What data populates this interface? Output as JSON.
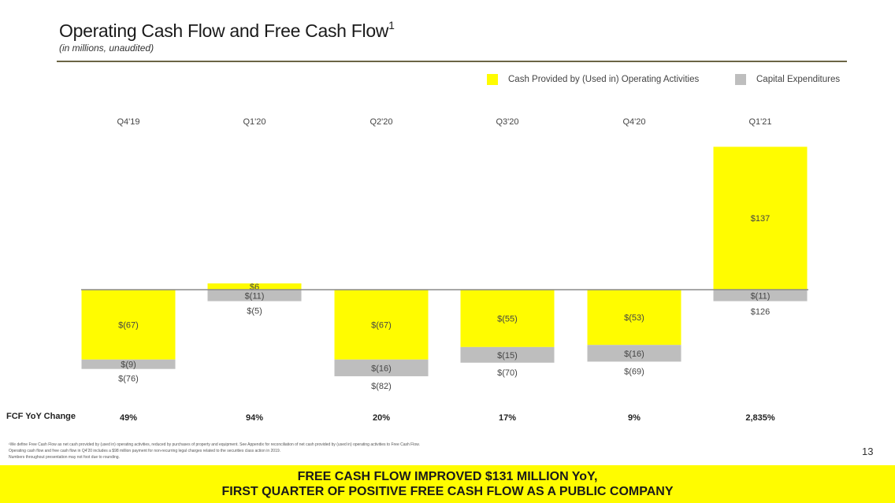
{
  "title": "Operating Cash Flow and Free Cash Flow",
  "title_superscript": "1",
  "subtitle": "(in millions, unaudited)",
  "colors": {
    "operating": "#fffc00",
    "capex": "#bebebe",
    "accent_rule": "#6b6545"
  },
  "legend": [
    {
      "label": "Cash Provided by (Used in) Operating Activities",
      "color": "#fffc00"
    },
    {
      "label": "Capital Expenditures",
      "color": "#bebebe"
    }
  ],
  "chart_data": {
    "type": "bar",
    "stacked": true,
    "categories": [
      "Q4'19",
      "Q1'20",
      "Q2'20",
      "Q3'20",
      "Q4'20",
      "Q1'21"
    ],
    "series": [
      {
        "name": "Cash Provided by (Used in) Operating Activities",
        "values": [
          -67,
          6,
          -67,
          -55,
          -53,
          137
        ],
        "labels": [
          "$(67)",
          "$6",
          "$(67)",
          "$(55)",
          "$(53)",
          "$137"
        ]
      },
      {
        "name": "Capital Expenditures",
        "values": [
          -9,
          -11,
          -16,
          -15,
          -16,
          -11
        ],
        "labels": [
          "$(9)",
          "$(11)",
          "$(16)",
          "$(15)",
          "$(16)",
          "$(11)"
        ]
      }
    ],
    "free_cash_flow": {
      "values": [
        -76,
        -5,
        -82,
        -70,
        -69,
        126
      ],
      "labels": [
        "$(76)",
        "$(5)",
        "$(82)",
        "$(70)",
        "$(69)",
        "$126"
      ]
    },
    "fcf_yoy_change": [
      "49%",
      "94%",
      "20%",
      "17%",
      "9%",
      "2,835%"
    ]
  },
  "fcf_row_label": "FCF YoY Change",
  "footnotes": [
    "¹We define Free Cash Flow as net cash provided by (used in) operating activities, reduced by purchases of property and equipment. See Appendix for reconciliation of net cash provided by (used in) operating activities to Free Cash Flow.",
    "Operating cash flow and free cash flow in Q4'20 includes a $98 million payment for non-recurring legal charges related to the securities class action in 2019.",
    "Numbers throughout presentation may not foot due to rounding."
  ],
  "page_number": "13",
  "banner": {
    "line1": "FREE CASH FLOW IMPROVED $131 MILLION YoY,",
    "line2": "FIRST QUARTER OF POSITIVE FREE CASH FLOW AS A PUBLIC COMPANY"
  }
}
